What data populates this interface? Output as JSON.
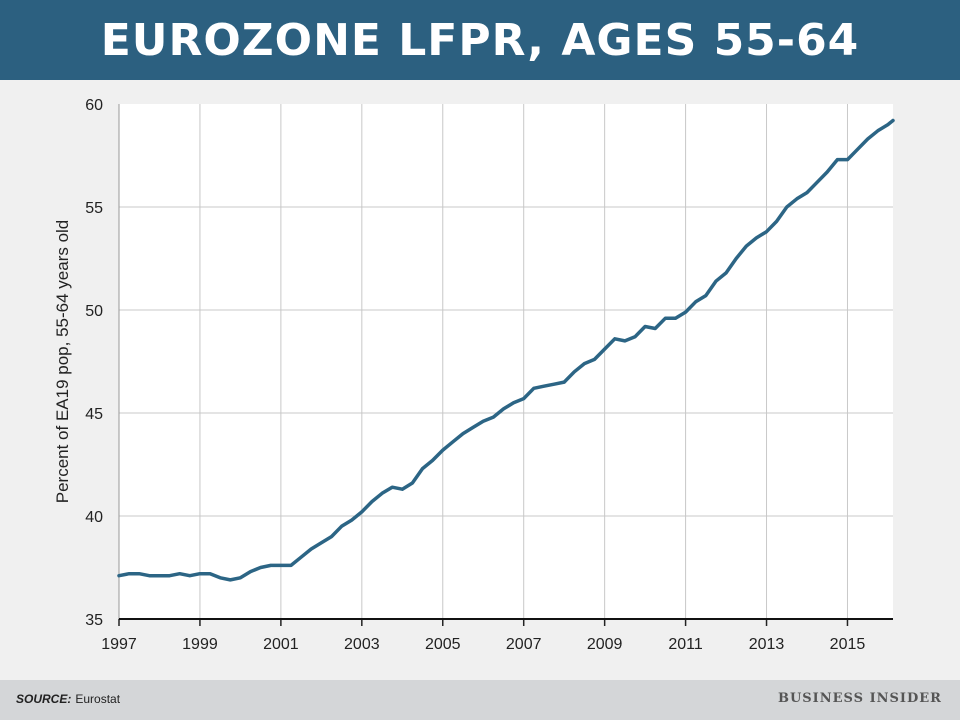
{
  "header": {
    "title": "EUROZONE LFPR, AGES 55-64"
  },
  "footer": {
    "source_label": "SOURCE:",
    "source_value": "Eurostat",
    "logo": "BUSINESS INSIDER"
  },
  "colors": {
    "header_bg": "#2c6080",
    "line": "#2c6585",
    "plot_bg": "#ffffff",
    "grid": "#c8c8c8",
    "page_bg": "#f0f0f0",
    "footer_bg": "#d4d6d8"
  },
  "chart_data": {
    "type": "line",
    "title": "EUROZONE LFPR, AGES 55-64",
    "xlabel": "",
    "ylabel": "Percent of EA19 pop, 55-64 years old",
    "xlim": [
      1997,
      2016.125
    ],
    "ylim": [
      35,
      60
    ],
    "xticks": [
      "1997",
      "1999",
      "2001",
      "2003",
      "2005",
      "2007",
      "2009",
      "2011",
      "2013",
      "2015"
    ],
    "yticks": [
      "35",
      "40",
      "45",
      "50",
      "55",
      "60"
    ],
    "grid": true,
    "legend": "none",
    "series": [
      {
        "x": [
          1997.0,
          1997.25,
          1997.5,
          1997.75,
          1998.0,
          1998.25,
          1998.5,
          1998.75,
          1999.0,
          1999.25,
          1999.5,
          1999.75,
          2000.0,
          2000.25,
          2000.5,
          2000.75,
          2001.0,
          2001.25,
          2001.5,
          2001.75,
          2002.0,
          2002.25,
          2002.5,
          2002.75,
          2003.0,
          2003.25,
          2003.5,
          2003.75,
          2004.0,
          2004.25,
          2004.5,
          2004.75,
          2005.0,
          2005.25,
          2005.5,
          2005.75,
          2006.0,
          2006.25,
          2006.5,
          2006.75,
          2007.0,
          2007.25,
          2007.5,
          2007.75,
          2008.0,
          2008.25,
          2008.5,
          2008.75,
          2009.0,
          2009.25,
          2009.5,
          2009.75,
          2010.0,
          2010.25,
          2010.5,
          2010.75,
          2011.0,
          2011.25,
          2011.5,
          2011.75,
          2012.0,
          2012.25,
          2012.5,
          2012.75,
          2013.0,
          2013.25,
          2013.5,
          2013.75,
          2014.0,
          2014.25,
          2014.5,
          2014.75,
          2015.0,
          2015.25,
          2015.5,
          2015.75,
          2016.0,
          2016.125
        ],
        "values": [
          37.1,
          37.2,
          37.2,
          37.1,
          37.1,
          37.1,
          37.2,
          37.1,
          37.2,
          37.2,
          37.0,
          36.9,
          37.0,
          37.3,
          37.5,
          37.6,
          37.6,
          37.6,
          38.0,
          38.4,
          38.7,
          39.0,
          39.5,
          39.8,
          40.2,
          40.7,
          41.1,
          41.4,
          41.3,
          41.6,
          42.3,
          42.7,
          43.2,
          43.6,
          44.0,
          44.3,
          44.6,
          44.8,
          45.2,
          45.5,
          45.7,
          46.2,
          46.3,
          46.4,
          46.5,
          47.0,
          47.4,
          47.6,
          48.1,
          48.6,
          48.5,
          48.7,
          49.2,
          49.1,
          49.6,
          49.6,
          49.9,
          50.4,
          50.7,
          51.4,
          51.8,
          52.5,
          53.1,
          53.5,
          53.8,
          54.3,
          55.0,
          55.4,
          55.7,
          56.2,
          56.7,
          57.3,
          57.3,
          57.8,
          58.3,
          58.7,
          59.0,
          59.2
        ]
      }
    ]
  }
}
